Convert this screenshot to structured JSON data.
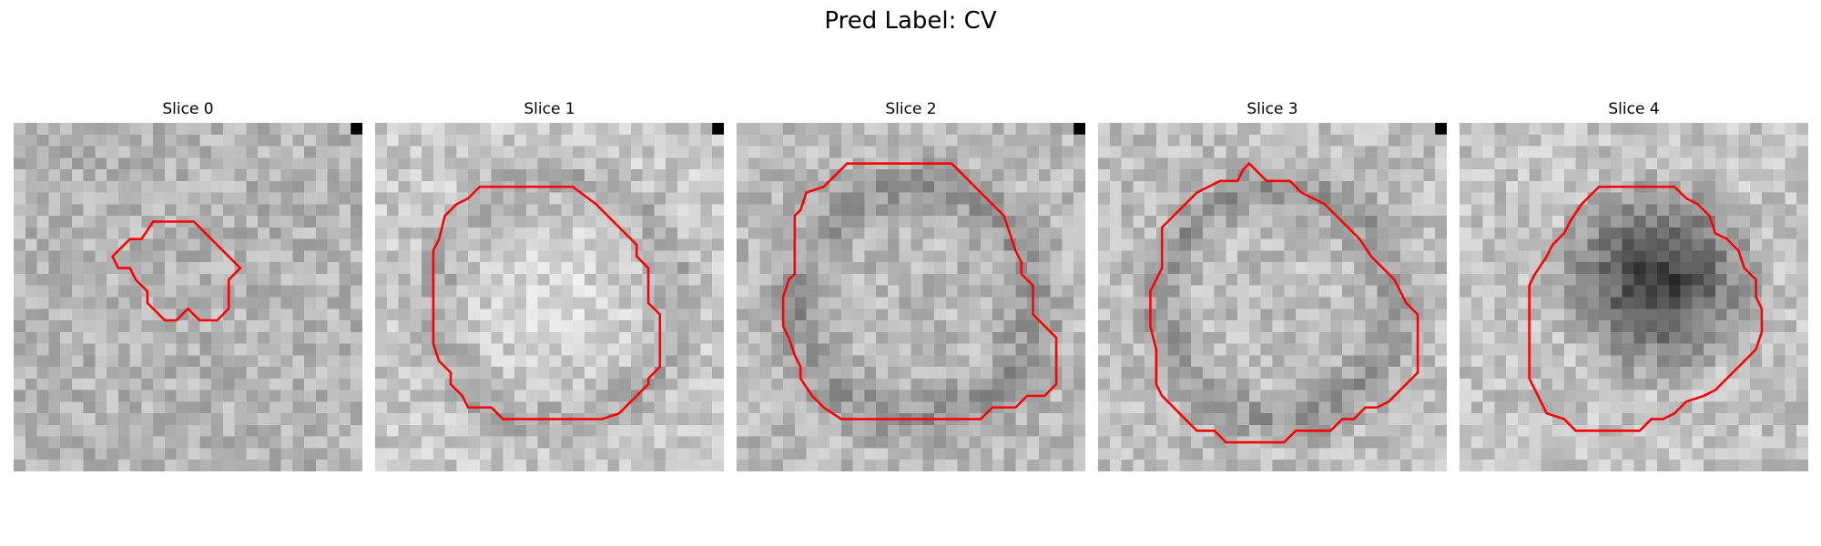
{
  "figure": {
    "suptitle": "Pred Label: CV"
  },
  "panels": [
    {
      "title": "Slice 0",
      "style": "light",
      "contour": [
        [
          12.0,
          8.5
        ],
        [
          15.5,
          8.5
        ],
        [
          19.5,
          12.5
        ],
        [
          18.5,
          13.5
        ],
        [
          18.5,
          16.0
        ],
        [
          17.5,
          17.0
        ],
        [
          16.0,
          17.0
        ],
        [
          15.0,
          16.0
        ],
        [
          14.0,
          17.0
        ],
        [
          13.0,
          17.0
        ],
        [
          11.5,
          15.5
        ],
        [
          11.5,
          14.5
        ],
        [
          10.5,
          13.5
        ],
        [
          10.0,
          12.5
        ],
        [
          9.0,
          12.5
        ],
        [
          8.5,
          11.5
        ],
        [
          10.0,
          10.0
        ],
        [
          11.0,
          10.0
        ]
      ]
    },
    {
      "title": "Slice 1",
      "style": "bright-center",
      "contour": [
        [
          12.0,
          5.5
        ],
        [
          17.0,
          5.5
        ],
        [
          19.0,
          7.0
        ],
        [
          22.5,
          10.5
        ],
        [
          22.5,
          11.5
        ],
        [
          23.5,
          12.5
        ],
        [
          23.5,
          15.5
        ],
        [
          24.5,
          16.5
        ],
        [
          24.5,
          21.0
        ],
        [
          23.5,
          22.0
        ],
        [
          23.5,
          22.5
        ],
        [
          21.0,
          25.0
        ],
        [
          19.5,
          25.5
        ],
        [
          11.0,
          25.5
        ],
        [
          10.0,
          24.5
        ],
        [
          8.0,
          24.5
        ],
        [
          7.5,
          23.5
        ],
        [
          6.5,
          22.5
        ],
        [
          6.5,
          21.5
        ],
        [
          5.5,
          20.5
        ],
        [
          5.0,
          19.0
        ],
        [
          5.0,
          11.0
        ],
        [
          5.5,
          10.0
        ],
        [
          6.0,
          8.0
        ],
        [
          7.0,
          7.0
        ],
        [
          8.0,
          6.5
        ],
        [
          9.0,
          5.5
        ]
      ]
    },
    {
      "title": "Slice 2",
      "style": "dark-ring",
      "contour": [
        [
          9.5,
          3.5
        ],
        [
          18.5,
          3.5
        ],
        [
          19.5,
          4.5
        ],
        [
          23.0,
          8.0
        ],
        [
          23.5,
          9.5
        ],
        [
          24.0,
          11.0
        ],
        [
          24.5,
          12.0
        ],
        [
          24.5,
          13.0
        ],
        [
          25.5,
          14.0
        ],
        [
          25.5,
          16.5
        ],
        [
          27.5,
          18.5
        ],
        [
          27.5,
          22.5
        ],
        [
          26.5,
          23.5
        ],
        [
          25.0,
          23.5
        ],
        [
          24.0,
          24.5
        ],
        [
          22.0,
          24.5
        ],
        [
          21.0,
          25.5
        ],
        [
          9.0,
          25.5
        ],
        [
          7.5,
          24.5
        ],
        [
          6.5,
          23.5
        ],
        [
          5.5,
          22.0
        ],
        [
          5.5,
          21.0
        ],
        [
          5.0,
          20.0
        ],
        [
          4.5,
          18.5
        ],
        [
          4.0,
          17.5
        ],
        [
          4.0,
          15.0
        ],
        [
          4.5,
          13.5
        ],
        [
          5.0,
          13.0
        ],
        [
          5.0,
          8.0
        ],
        [
          5.5,
          7.5
        ],
        [
          6.0,
          6.0
        ],
        [
          7.5,
          5.5
        ],
        [
          8.5,
          4.5
        ]
      ]
    },
    {
      "title": "Slice 3",
      "style": "ring",
      "contour": [
        [
          12.5,
          4.0
        ],
        [
          13.0,
          3.5
        ],
        [
          13.5,
          4.0
        ],
        [
          14.5,
          5.0
        ],
        [
          16.5,
          5.0
        ],
        [
          17.5,
          6.0
        ],
        [
          19.5,
          7.0
        ],
        [
          20.5,
          8.0
        ],
        [
          21.0,
          8.5
        ],
        [
          22.5,
          10.0
        ],
        [
          23.5,
          11.5
        ],
        [
          24.5,
          12.5
        ],
        [
          25.5,
          13.5
        ],
        [
          26.5,
          15.5
        ],
        [
          27.5,
          16.5
        ],
        [
          27.5,
          21.5
        ],
        [
          26.0,
          23.0
        ],
        [
          25.0,
          24.0
        ],
        [
          24.0,
          24.5
        ],
        [
          23.0,
          24.5
        ],
        [
          22.0,
          25.5
        ],
        [
          21.0,
          25.5
        ],
        [
          20.0,
          26.5
        ],
        [
          17.0,
          26.5
        ],
        [
          16.0,
          27.5
        ],
        [
          11.0,
          27.5
        ],
        [
          10.0,
          26.5
        ],
        [
          8.5,
          26.5
        ],
        [
          7.5,
          25.5
        ],
        [
          5.5,
          23.5
        ],
        [
          5.0,
          22.5
        ],
        [
          5.0,
          19.5
        ],
        [
          4.5,
          17.5
        ],
        [
          4.5,
          14.5
        ],
        [
          5.0,
          13.5
        ],
        [
          5.5,
          12.5
        ],
        [
          5.5,
          9.0
        ],
        [
          6.5,
          8.0
        ],
        [
          8.5,
          6.0
        ],
        [
          9.5,
          5.5
        ],
        [
          10.5,
          5.0
        ],
        [
          12.0,
          5.0
        ]
      ]
    },
    {
      "title": "Slice 4",
      "style": "dark-center",
      "contour": [
        [
          12.0,
          5.5
        ],
        [
          18.5,
          5.5
        ],
        [
          19.5,
          6.5
        ],
        [
          20.5,
          7.0
        ],
        [
          21.5,
          8.0
        ],
        [
          22.0,
          9.5
        ],
        [
          23.0,
          10.0
        ],
        [
          24.0,
          11.0
        ],
        [
          24.5,
          12.5
        ],
        [
          25.5,
          13.5
        ],
        [
          25.5,
          15.0
        ],
        [
          26.0,
          16.0
        ],
        [
          26.0,
          18.0
        ],
        [
          25.5,
          19.5
        ],
        [
          24.5,
          20.5
        ],
        [
          23.0,
          22.0
        ],
        [
          22.0,
          23.0
        ],
        [
          21.0,
          23.5
        ],
        [
          19.5,
          24.0
        ],
        [
          18.5,
          25.0
        ],
        [
          17.5,
          25.5
        ],
        [
          16.5,
          25.5
        ],
        [
          15.5,
          26.5
        ],
        [
          14.5,
          26.5
        ],
        [
          13.5,
          26.5
        ],
        [
          12.0,
          26.5
        ],
        [
          11.0,
          26.5
        ],
        [
          10.0,
          26.5
        ],
        [
          9.0,
          25.5
        ],
        [
          7.5,
          25.0
        ],
        [
          7.0,
          24.0
        ],
        [
          6.5,
          23.0
        ],
        [
          6.0,
          22.0
        ],
        [
          6.0,
          20.0
        ],
        [
          6.0,
          14.0
        ],
        [
          6.5,
          13.0
        ],
        [
          7.5,
          11.5
        ],
        [
          8.0,
          10.5
        ],
        [
          9.0,
          9.5
        ],
        [
          9.5,
          8.5
        ],
        [
          10.5,
          7.0
        ],
        [
          11.0,
          6.5
        ]
      ]
    }
  ],
  "colors": {
    "contour": "#ff0000",
    "background": "#ffffff"
  }
}
